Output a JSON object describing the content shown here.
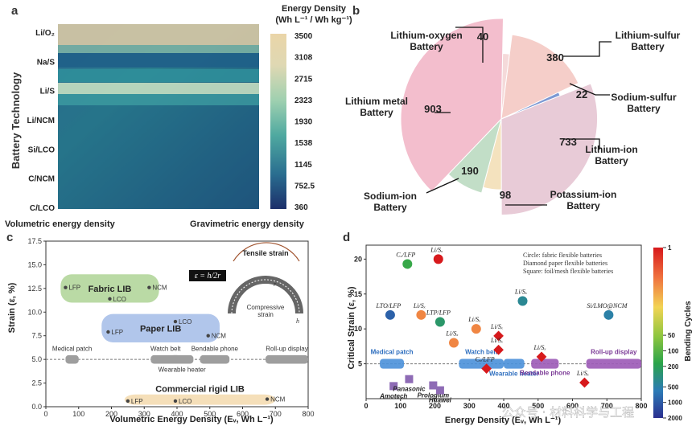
{
  "panel_a": {
    "label": "a",
    "ylabel": "Battery Technology",
    "x_left_label": "Volumetric energy density",
    "x_right_label": "Gravimetric energy density",
    "colorbar_title_1": "Energy Density",
    "colorbar_title_2": "(Wh L⁻¹ / Wh kg⁻¹)",
    "colorbar_colors": [
      "#1f3b73",
      "#1f5e8c",
      "#2a8a96",
      "#5bb3a3",
      "#a4d2b1",
      "#e3d7b0",
      "#ead5a8"
    ]
  },
  "panel_b": {
    "label": "b",
    "slice_colors": {
      "lithium_oxygen": "#f5d6d6",
      "lithium_sulfur": "#f4c9c4",
      "sodium_sulfur": "#6f8fcf",
      "lithium_ion": "#e6c6d3",
      "potassium_ion": "#f3dfb8",
      "sodium_ion": "#bcdbc1",
      "lithium_metal": "#f2b8c8"
    }
  },
  "panel_c": {
    "label": "c",
    "ylabel": "Strain (ε, %)",
    "xlabel": "Volumetric Energy Density (Eᵥ, Wh L⁻¹)",
    "groups": [
      {
        "name": "Fabric LIB",
        "points": [
          "LFP",
          "LCO",
          "NCM"
        ]
      },
      {
        "name": "Paper LIB",
        "points": [
          "LFP",
          "LCO",
          "NCM"
        ]
      },
      {
        "name": "Commercial rigid LIB",
        "points": [
          "LFP",
          "LCO",
          "NCM"
        ]
      }
    ],
    "applications": [
      "Medical patch",
      "Watch belt",
      "Wearable heater",
      "Bendable phone",
      "Roll-up display"
    ],
    "formula": "ε = h/2r",
    "inset_labels": [
      "Tensile strain",
      "Compressive strain",
      "r",
      "h"
    ]
  },
  "panel_d": {
    "label": "d",
    "ylabel": "Critical Strain (ε, %)",
    "xlabel": "Energy Density (Eᵥ, Wh L⁻¹)",
    "legend_text": [
      "Circle: fabric flexible batteries",
      "Diamond paper flexible batteries",
      "Square: foil/mesh flexible batteries"
    ],
    "colorbar_label": "Bending Cycles",
    "applications": [
      "Medical patch",
      "Watch belt",
      "Wearable heater",
      "Bendable phone",
      "Roll-up display"
    ],
    "brands": [
      "Amotech",
      "Panasonic",
      "Prologium",
      "Huawei"
    ]
  },
  "watermark": "公众号 · 材料科学与工程",
  "chart_data": [
    {
      "type": "heatmap",
      "ylabel": "Battery Technology",
      "categories": [
        "Li/O₂",
        "Na/S",
        "Li/S",
        "Li/NCM",
        "Si/LCO",
        "C/NCM",
        "C/LCO"
      ],
      "colorbar_ticks": [
        3500,
        3108,
        2715,
        2323,
        1930,
        1538,
        1145,
        752.5,
        360.0
      ]
    },
    {
      "type": "pie",
      "slices": [
        {
          "name": "Lithium-oxygen Battery",
          "value": 40
        },
        {
          "name": "Lithium-sulfur Battery",
          "value": 380
        },
        {
          "name": "Sodium-sulfur Battery",
          "value": 22
        },
        {
          "name": "Lithium-ion Battery",
          "value": 733
        },
        {
          "name": "Potassium-ion Battery",
          "value": 98
        },
        {
          "name": "Sodium-ion Battery",
          "value": 190
        },
        {
          "name": "Lithium metal Battery",
          "value": 903
        }
      ]
    },
    {
      "type": "scatter",
      "xlabel": "Volumetric Energy Density (Eᵥ, Wh L⁻¹)",
      "ylabel": "Strain (ε, %)",
      "xlim": [
        0,
        800
      ],
      "ylim": [
        0,
        17.5
      ],
      "xticks": [
        0,
        100,
        200,
        300,
        400,
        500,
        600,
        700,
        800
      ],
      "yticks": [
        0.0,
        2.5,
        5.0,
        7.5,
        10.0,
        12.5,
        15.0,
        17.5
      ],
      "series": [
        {
          "name": "Fabric LIB",
          "points": [
            {
              "label": "LFP",
              "x": 60,
              "y": 12.6
            },
            {
              "label": "LCO",
              "x": 195,
              "y": 11.4
            },
            {
              "label": "NCM",
              "x": 315,
              "y": 12.6
            }
          ]
        },
        {
          "name": "Paper LIB",
          "points": [
            {
              "label": "LFP",
              "x": 190,
              "y": 7.9
            },
            {
              "label": "LCO",
              "x": 395,
              "y": 9.0
            },
            {
              "label": "NCM",
              "x": 495,
              "y": 7.5
            }
          ]
        },
        {
          "name": "Commercial rigid LIB",
          "points": [
            {
              "label": "LFP",
              "x": 250,
              "y": 0.6
            },
            {
              "label": "LCO",
              "x": 395,
              "y": 0.6
            },
            {
              "label": "NCM",
              "x": 675,
              "y": 0.8
            }
          ]
        }
      ],
      "threshold_y": 5.0,
      "applications": [
        {
          "name": "Medical patch",
          "x": [
            60,
            100
          ]
        },
        {
          "name": "Watch belt",
          "x": [
            320,
            410
          ]
        },
        {
          "name": "Wearable heater",
          "x": [
            380,
            450
          ]
        },
        {
          "name": "Bendable phone",
          "x": [
            470,
            560
          ]
        },
        {
          "name": "Roll-up display",
          "x": [
            670,
            800
          ]
        }
      ]
    },
    {
      "type": "scatter",
      "xlabel": "Energy Density (Eᵥ, Wh L⁻¹)",
      "ylabel": "Critical Strain (ε, %)",
      "xlim": [
        0,
        800
      ],
      "ylim": [
        0,
        22
      ],
      "xticks": [
        0,
        100,
        200,
        300,
        400,
        500,
        600,
        700,
        800
      ],
      "yticks": [
        5,
        10,
        15,
        20
      ],
      "colorbar": {
        "label": "Bending Cycles",
        "ticks": [
          1,
          50,
          100,
          200,
          500,
          1000,
          2000
        ]
      },
      "points": [
        {
          "label": "Cₓ/LFP",
          "x": 120,
          "y": 19.3,
          "shape": "circle",
          "cycles": 150
        },
        {
          "label": "Li/Sₓ",
          "x": 210,
          "y": 20.0,
          "shape": "circle",
          "cycles": 1
        },
        {
          "label": "LTO/LFP",
          "x": 70,
          "y": 12.0,
          "shape": "circle",
          "cycles": 900
        },
        {
          "label": "Li/Sₓ",
          "x": 160,
          "y": 12.0,
          "shape": "circle",
          "cycles": 5
        },
        {
          "label": "LTP/LFP",
          "x": 215,
          "y": 11.0,
          "shape": "circle",
          "cycles": 250
        },
        {
          "label": "Li/Sₓ",
          "x": 320,
          "y": 10.0,
          "shape": "circle",
          "cycles": 5
        },
        {
          "label": "Li/Sₓ",
          "x": 255,
          "y": 8.0,
          "shape": "circle",
          "cycles": 5
        },
        {
          "label": "Li/Sₓ",
          "x": 455,
          "y": 14.0,
          "shape": "circle",
          "cycles": 400
        },
        {
          "label": "Si/LMO@NCM",
          "x": 705,
          "y": 12.0,
          "shape": "circle",
          "cycles": 500
        },
        {
          "label": "Li/Sₓ",
          "x": 385,
          "y": 9.0,
          "shape": "diamond",
          "cycles": 1
        },
        {
          "label": "Li/Sₓ",
          "x": 385,
          "y": 7.0,
          "shape": "diamond",
          "cycles": 1
        },
        {
          "label": "Cₓ/LFP",
          "x": 350,
          "y": 4.3,
          "shape": "diamond",
          "cycles": 1
        },
        {
          "label": "Li/Sₓ",
          "x": 510,
          "y": 6.0,
          "shape": "diamond",
          "cycles": 1
        },
        {
          "label": "Li/Sₓ",
          "x": 635,
          "y": 2.3,
          "shape": "diamond",
          "cycles": 1
        }
      ],
      "brands": [
        {
          "name": "Amotech",
          "x": 80,
          "y": 1.8
        },
        {
          "name": "Panasonic",
          "x": 125,
          "y": 2.8
        },
        {
          "name": "Prologium",
          "x": 195,
          "y": 1.9
        },
        {
          "name": "Huawei",
          "x": 215,
          "y": 1.2
        }
      ],
      "threshold_y": 5.0,
      "applications": [
        {
          "name": "Medical patch",
          "x": [
            40,
            110
          ]
        },
        {
          "name": "Watch belt",
          "x": [
            270,
            400
          ]
        },
        {
          "name": "Wearable heater",
          "x": [
            400,
            460
          ]
        },
        {
          "name": "Bendable phone",
          "x": [
            480,
            560
          ]
        },
        {
          "name": "Roll-up display",
          "x": [
            640,
            800
          ]
        }
      ]
    }
  ]
}
